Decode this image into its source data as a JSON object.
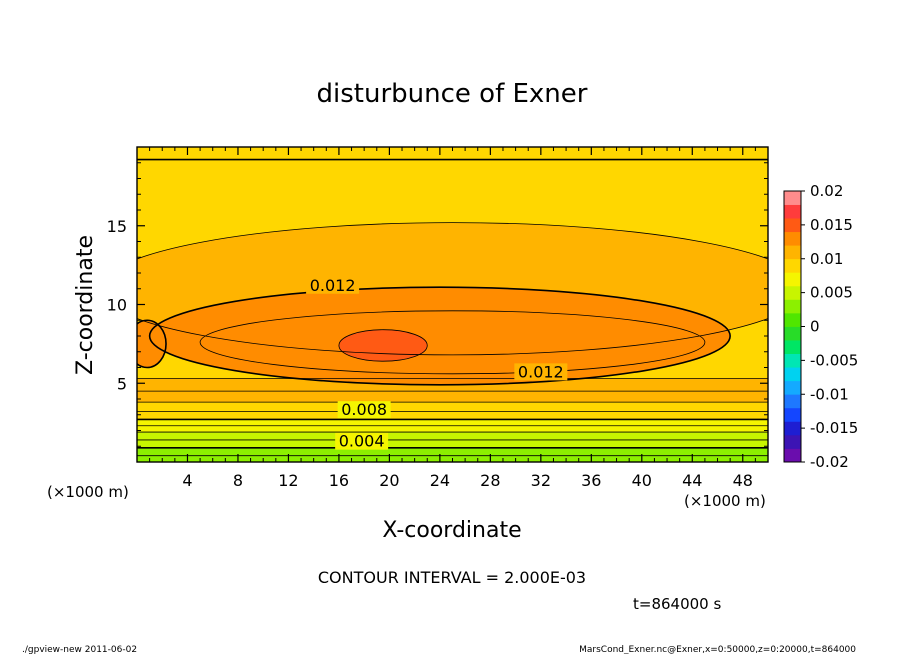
{
  "chart_data": {
    "type": "heatmap",
    "subtype": "filled-contour",
    "title": "disturbunce of Exner",
    "xlabel": "X-coordinate",
    "ylabel": "Z-coordinate",
    "x_unit": "(×1000 m)",
    "xlim": [
      0,
      50
    ],
    "ylim": [
      0,
      20
    ],
    "x_ticks": [
      4,
      8,
      12,
      16,
      20,
      24,
      28,
      32,
      36,
      40,
      44,
      48
    ],
    "y_ticks": [
      5,
      10,
      15
    ],
    "contour_interval_text": "CONTOUR INTERVAL = 2.000E-03",
    "time_text": "t=864000 s",
    "contour_labels": [
      {
        "text": "0.012",
        "x": 15.5,
        "y": 11.0
      },
      {
        "text": "0.012",
        "x": 32.0,
        "y": 5.5
      },
      {
        "text": "0.008",
        "x": 18.0,
        "y": 3.1
      },
      {
        "text": "0.004",
        "x": 17.8,
        "y": 1.1
      }
    ],
    "colorbar": {
      "levels": [
        -0.02,
        -0.018,
        -0.016,
        -0.014,
        -0.012,
        -0.01,
        -0.008,
        -0.006,
        -0.004,
        -0.002,
        0,
        0.002,
        0.004,
        0.006,
        0.008,
        0.01,
        0.012,
        0.014,
        0.016,
        0.018,
        0.02
      ],
      "tick_labels": [
        "-0.02",
        "-0.015",
        "-0.01",
        "-0.005",
        "0",
        "0.005",
        "0.01",
        "0.015",
        "0.02"
      ],
      "colors": [
        "#6a0dad",
        "#3c14b4",
        "#1e1ed2",
        "#1446ff",
        "#1e78ff",
        "#14aaff",
        "#00d2f0",
        "#00e6b4",
        "#00e664",
        "#28dc28",
        "#50e600",
        "#8cf000",
        "#c8f500",
        "#f5f500",
        "#ffd700",
        "#ffb400",
        "#ff8c00",
        "#ff5a14",
        "#ff3c3c",
        "#ff8c8c"
      ]
    },
    "field_bands": [
      {
        "z": [
          0.0,
          0.4
        ],
        "value": 0.0025
      },
      {
        "z": [
          0.4,
          0.9
        ],
        "value": 0.0035
      },
      {
        "z": [
          0.9,
          1.4
        ],
        "value": 0.0045
      },
      {
        "z": [
          1.4,
          1.9
        ],
        "value": 0.0055
      },
      {
        "z": [
          1.9,
          2.3
        ],
        "value": 0.0065
      },
      {
        "z": [
          2.3,
          2.7
        ],
        "value": 0.0075
      },
      {
        "z": [
          2.7,
          3.2
        ],
        "value": 0.0085
      },
      {
        "z": [
          3.2,
          3.8
        ],
        "value": 0.0095
      },
      {
        "z": [
          3.8,
          4.5
        ],
        "value": 0.0105
      },
      {
        "z": [
          4.5,
          5.3
        ],
        "value": 0.0115
      },
      {
        "z": [
          5.3,
          19.2
        ],
        "value": 0.0092
      },
      {
        "z": [
          19.2,
          20.0
        ],
        "value": 0.0085
      }
    ],
    "field_regions": [
      {
        "value": 0.0105,
        "center": [
          25,
          11.0
        ],
        "half_width": [
          28,
          4.2
        ]
      },
      {
        "value": 0.0125,
        "center": [
          24,
          8.0
        ],
        "half_width": [
          23,
          3.1
        ]
      },
      {
        "value": 0.0125,
        "center": [
          0.8,
          7.5
        ],
        "half_width": [
          1.5,
          1.5
        ]
      },
      {
        "value": 0.0135,
        "center": [
          25,
          7.6
        ],
        "half_width": [
          20,
          2.0
        ]
      },
      {
        "value": 0.0145,
        "center": [
          19.5,
          7.4
        ],
        "half_width": [
          3.5,
          1.0
        ]
      }
    ]
  },
  "footer": {
    "left": "./gpview-new   2011-06-02",
    "right": "MarsCond_Exner.nc@Exner,x=0:50000,z=0:20000,t=864000"
  }
}
